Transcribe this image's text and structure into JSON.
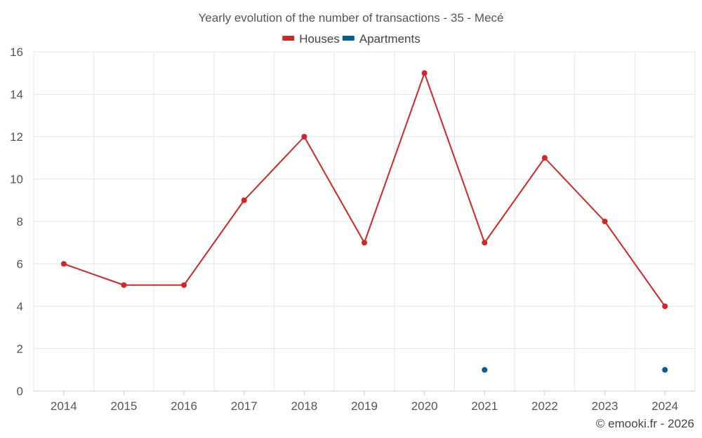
{
  "chart_data": {
    "type": "line",
    "title": "Yearly evolution of the number of transactions - 35 - Mecé",
    "categories": [
      "2014",
      "2015",
      "2016",
      "2017",
      "2018",
      "2019",
      "2020",
      "2021",
      "2022",
      "2023",
      "2024"
    ],
    "series": [
      {
        "name": "Houses",
        "color": "#d32626",
        "values": [
          6,
          5,
          5,
          9,
          12,
          7,
          15,
          7,
          11,
          8,
          4
        ]
      },
      {
        "name": "Apartments",
        "color": "#005f96",
        "values": [
          null,
          null,
          null,
          null,
          null,
          null,
          null,
          1,
          null,
          null,
          1
        ]
      }
    ],
    "ylim": [
      0,
      16
    ],
    "yticks": [
      0,
      2,
      4,
      6,
      8,
      10,
      12,
      14,
      16
    ],
    "grid": true,
    "legend": "top-center",
    "xlabel": "",
    "ylabel": ""
  },
  "credit": "© emooki.fr - 2026"
}
